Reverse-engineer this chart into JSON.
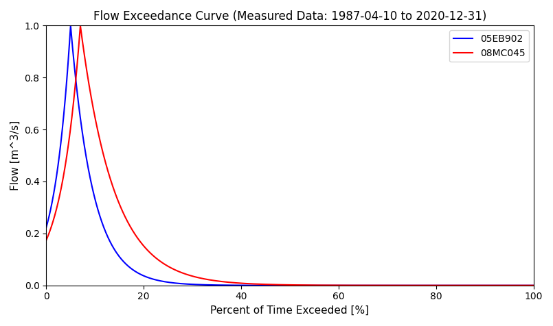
{
  "title": "Flow Exceedance Curve (Measured Data: 1987-04-10 to 2020-12-31)",
  "xlabel": "Percent of Time Exceeded [%]",
  "ylabel": "Flow [m^3/s]",
  "xlim": [
    0,
    100
  ],
  "ylim": [
    0,
    1.0
  ],
  "legend_labels": [
    "05EB902",
    "08MC045"
  ],
  "curve_colors": [
    "blue",
    "red"
  ],
  "blue_params": {
    "scale": 14.0,
    "decay": 0.28
  },
  "red_params": {
    "scale": 18.0,
    "decay": 0.18
  },
  "title_fontsize": 12,
  "label_fontsize": 11
}
